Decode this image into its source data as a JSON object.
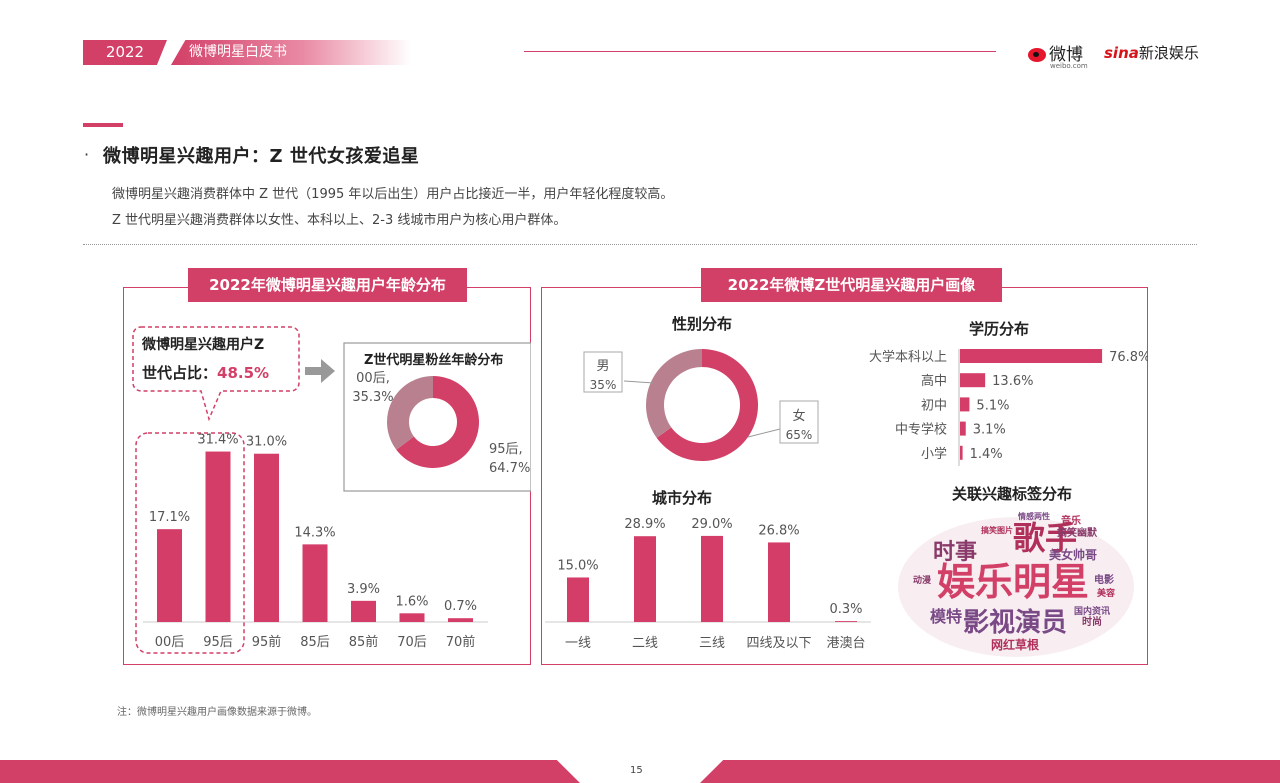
{
  "header": {
    "year": "2022",
    "title": "微博明星白皮书",
    "logo_weibo": "微博",
    "logo_weibo_sub": "weibo.com",
    "logo_sina": "sina",
    "logo_sina_text": "新浪娱乐"
  },
  "section": {
    "bullet": "·",
    "title": "微博明星兴趣用户：Z 世代女孩爱追星",
    "p1": "微博明星兴趣消费群体中 Z 世代（1995 年以后出生）用户占比接近一半，用户年轻化程度较高。",
    "p2": "Z 世代明星兴趣消费群体以女性、本科以上、2-3 线城市用户为核心用户群体。"
  },
  "left_panel": {
    "title": "2022年微博明星兴趣用户年龄分布",
    "callout_line1": "微博明星兴趣用户Z",
    "callout_line2": "世代占比：",
    "callout_value": "48.5%",
    "inset_title": "Z世代明星粉丝年龄分布"
  },
  "right_panel": {
    "title": "2022年微博Z世代明星兴趣用户画像",
    "gender_title": "性别分布",
    "edu_title": "学历分布",
    "city_title": "城市分布",
    "tags_title": "关联兴趣标签分布"
  },
  "colors": {
    "accent": "#d23f67",
    "muted": "#b98090",
    "bar": "#d43d68"
  },
  "chart_data": [
    {
      "type": "bar",
      "title": "2022年微博明星兴趣用户年龄分布",
      "categories": [
        "00后",
        "95后",
        "95前",
        "85后",
        "85前",
        "70后",
        "70前"
      ],
      "values": [
        17.1,
        31.4,
        31.0,
        14.3,
        3.9,
        1.6,
        0.7
      ],
      "labels": [
        "17.1%",
        "31.4%",
        "31.0%",
        "14.3%",
        "3.9%",
        "1.6%",
        "0.7%"
      ],
      "ylim": [
        0,
        35
      ]
    },
    {
      "type": "pie",
      "title": "Z世代明星粉丝年龄分布",
      "labels": [
        "00后,",
        "95后,"
      ],
      "values": [
        35.3,
        64.7
      ],
      "pct_labels": [
        "35.3%",
        "64.7%"
      ]
    },
    {
      "type": "pie",
      "title": "性别分布",
      "labels": [
        "男",
        "女"
      ],
      "values": [
        35,
        65
      ],
      "pct_labels": [
        "35%",
        "65%"
      ]
    },
    {
      "type": "bar",
      "title": "学历分布",
      "orientation": "horizontal",
      "categories": [
        "大学本科以上",
        "高中",
        "初中",
        "中专学校",
        "小学"
      ],
      "values": [
        76.8,
        13.6,
        5.1,
        3.1,
        1.4
      ],
      "labels": [
        "76.8%",
        "13.6%",
        "5.1%",
        "3.1%",
        "1.4%"
      ],
      "xlim": [
        0,
        80
      ]
    },
    {
      "type": "bar",
      "title": "城市分布",
      "categories": [
        "一线",
        "二线",
        "三线",
        "四线及以下",
        "港澳台"
      ],
      "values": [
        15.0,
        28.9,
        29.0,
        26.8,
        0.3
      ],
      "labels": [
        "15.0%",
        "28.9%",
        "29.0%",
        "26.8%",
        "0.3%"
      ],
      "ylim": [
        0,
        32
      ]
    }
  ],
  "word_cloud": {
    "title": "关联兴趣标签分布",
    "words": [
      {
        "text": "娱乐明星",
        "size": 38,
        "color": "#d23f67"
      },
      {
        "text": "歌手",
        "size": 32,
        "color": "#b0305a"
      },
      {
        "text": "影视演员",
        "size": 26,
        "color": "#7a4a86"
      },
      {
        "text": "时事",
        "size": 22,
        "color": "#8a3a6a"
      },
      {
        "text": "模特",
        "size": 16,
        "color": "#7a4a86"
      },
      {
        "text": "网红草根",
        "size": 12,
        "color": "#b0305a"
      },
      {
        "text": "美女帅哥",
        "size": 12,
        "color": "#7a4a86"
      },
      {
        "text": "搞笑幽默",
        "size": 10,
        "color": "#8a3a6a"
      },
      {
        "text": "音乐",
        "size": 10,
        "color": "#b0305a"
      },
      {
        "text": "电影",
        "size": 10,
        "color": "#7a4a86"
      },
      {
        "text": "时尚",
        "size": 10,
        "color": "#8a3a6a"
      },
      {
        "text": "国内资讯",
        "size": 9,
        "color": "#7a4a86"
      },
      {
        "text": "美容",
        "size": 9,
        "color": "#b0305a"
      },
      {
        "text": "动漫",
        "size": 9,
        "color": "#8a3a6a"
      },
      {
        "text": "情感两性",
        "size": 8,
        "color": "#7a4a86"
      },
      {
        "text": "搞笑图片",
        "size": 8,
        "color": "#b0305a"
      }
    ]
  },
  "footer": {
    "note": "注：微博明星兴趣用户画像数据来源于微博。",
    "page": "15"
  }
}
